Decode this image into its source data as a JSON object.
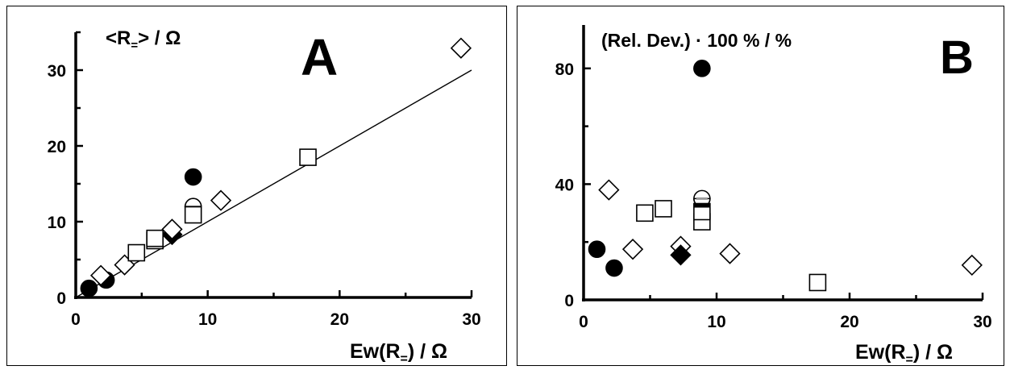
{
  "chart_data": [
    {
      "type": "scatter",
      "panel_letter": "A",
      "ylabel": {
        "pre": "<R",
        "sub": "=",
        "post": ">  /  Ω"
      },
      "xlabel": {
        "pre": "Ew(R",
        "sub": "=",
        "post": ") /  Ω"
      },
      "xlim": [
        0,
        30
      ],
      "ylim": [
        0,
        35
      ],
      "x_ticks": [
        0,
        10,
        20,
        30
      ],
      "y_ticks": [
        0,
        10,
        20,
        30
      ],
      "x_tick_labels": [
        "0",
        "10",
        "20",
        "30"
      ],
      "y_tick_labels": [
        "0",
        "10",
        "20",
        "30"
      ],
      "fit_line": {
        "x": [
          0,
          30
        ],
        "y": [
          0,
          30
        ]
      },
      "series": [
        {
          "marker": "filled-circle",
          "points": [
            [
              1.0,
              1.2
            ],
            [
              2.3,
              2.3
            ],
            [
              8.9,
              15.9
            ]
          ]
        },
        {
          "marker": "half-circle",
          "points": [
            [
              8.9,
              12.0
            ]
          ]
        },
        {
          "marker": "filled-diamond",
          "points": [
            [
              7.3,
              8.3
            ]
          ]
        },
        {
          "marker": "open-diamond",
          "points": [
            [
              1.9,
              2.9
            ],
            [
              3.7,
              4.3
            ],
            [
              7.3,
              9.0
            ],
            [
              11.0,
              12.8
            ],
            [
              29.2,
              32.9
            ]
          ]
        },
        {
          "marker": "half-square",
          "points": [
            [
              6.0,
              7.5
            ]
          ]
        },
        {
          "marker": "open-square",
          "points": [
            [
              4.6,
              5.9
            ],
            [
              6.0,
              7.8
            ],
            [
              8.9,
              10.9
            ],
            [
              17.6,
              18.5
            ]
          ]
        }
      ]
    },
    {
      "type": "scatter",
      "panel_letter": "B",
      "ylabel": {
        "pre": "(Rel. Dev.) · 100 %   /   %",
        "sub": "",
        "post": ""
      },
      "xlabel": {
        "pre": "Ew(R",
        "sub": "=",
        "post": ")  /  Ω"
      },
      "xlim": [
        0,
        30
      ],
      "ylim": [
        0,
        95
      ],
      "x_ticks": [
        0,
        10,
        20,
        30
      ],
      "y_ticks": [
        0,
        40,
        80
      ],
      "x_tick_labels": [
        "0",
        "10",
        "20",
        "30"
      ],
      "y_tick_labels": [
        "0",
        "40",
        "80"
      ],
      "series": [
        {
          "marker": "filled-circle",
          "points": [
            [
              1.0,
              17.5
            ],
            [
              2.3,
              11.0
            ],
            [
              8.9,
              80.0
            ]
          ]
        },
        {
          "marker": "half-circle-gray",
          "points": [
            [
              8.9,
              35.0
            ]
          ]
        },
        {
          "marker": "open-diamond",
          "points": [
            [
              1.9,
              38.0
            ],
            [
              3.7,
              17.5
            ],
            [
              7.3,
              18.5
            ],
            [
              11.0,
              16.0
            ],
            [
              29.2,
              12.0
            ]
          ]
        },
        {
          "marker": "filled-diamond",
          "points": [
            [
              7.3,
              15.5
            ]
          ]
        },
        {
          "marker": "open-square",
          "points": [
            [
              4.6,
              30.0
            ],
            [
              6.0,
              31.5
            ],
            [
              8.9,
              27.0
            ],
            [
              17.6,
              6.0
            ]
          ]
        },
        {
          "marker": "half-square",
          "points": [
            [
              8.9,
              30.5
            ]
          ]
        }
      ]
    }
  ]
}
